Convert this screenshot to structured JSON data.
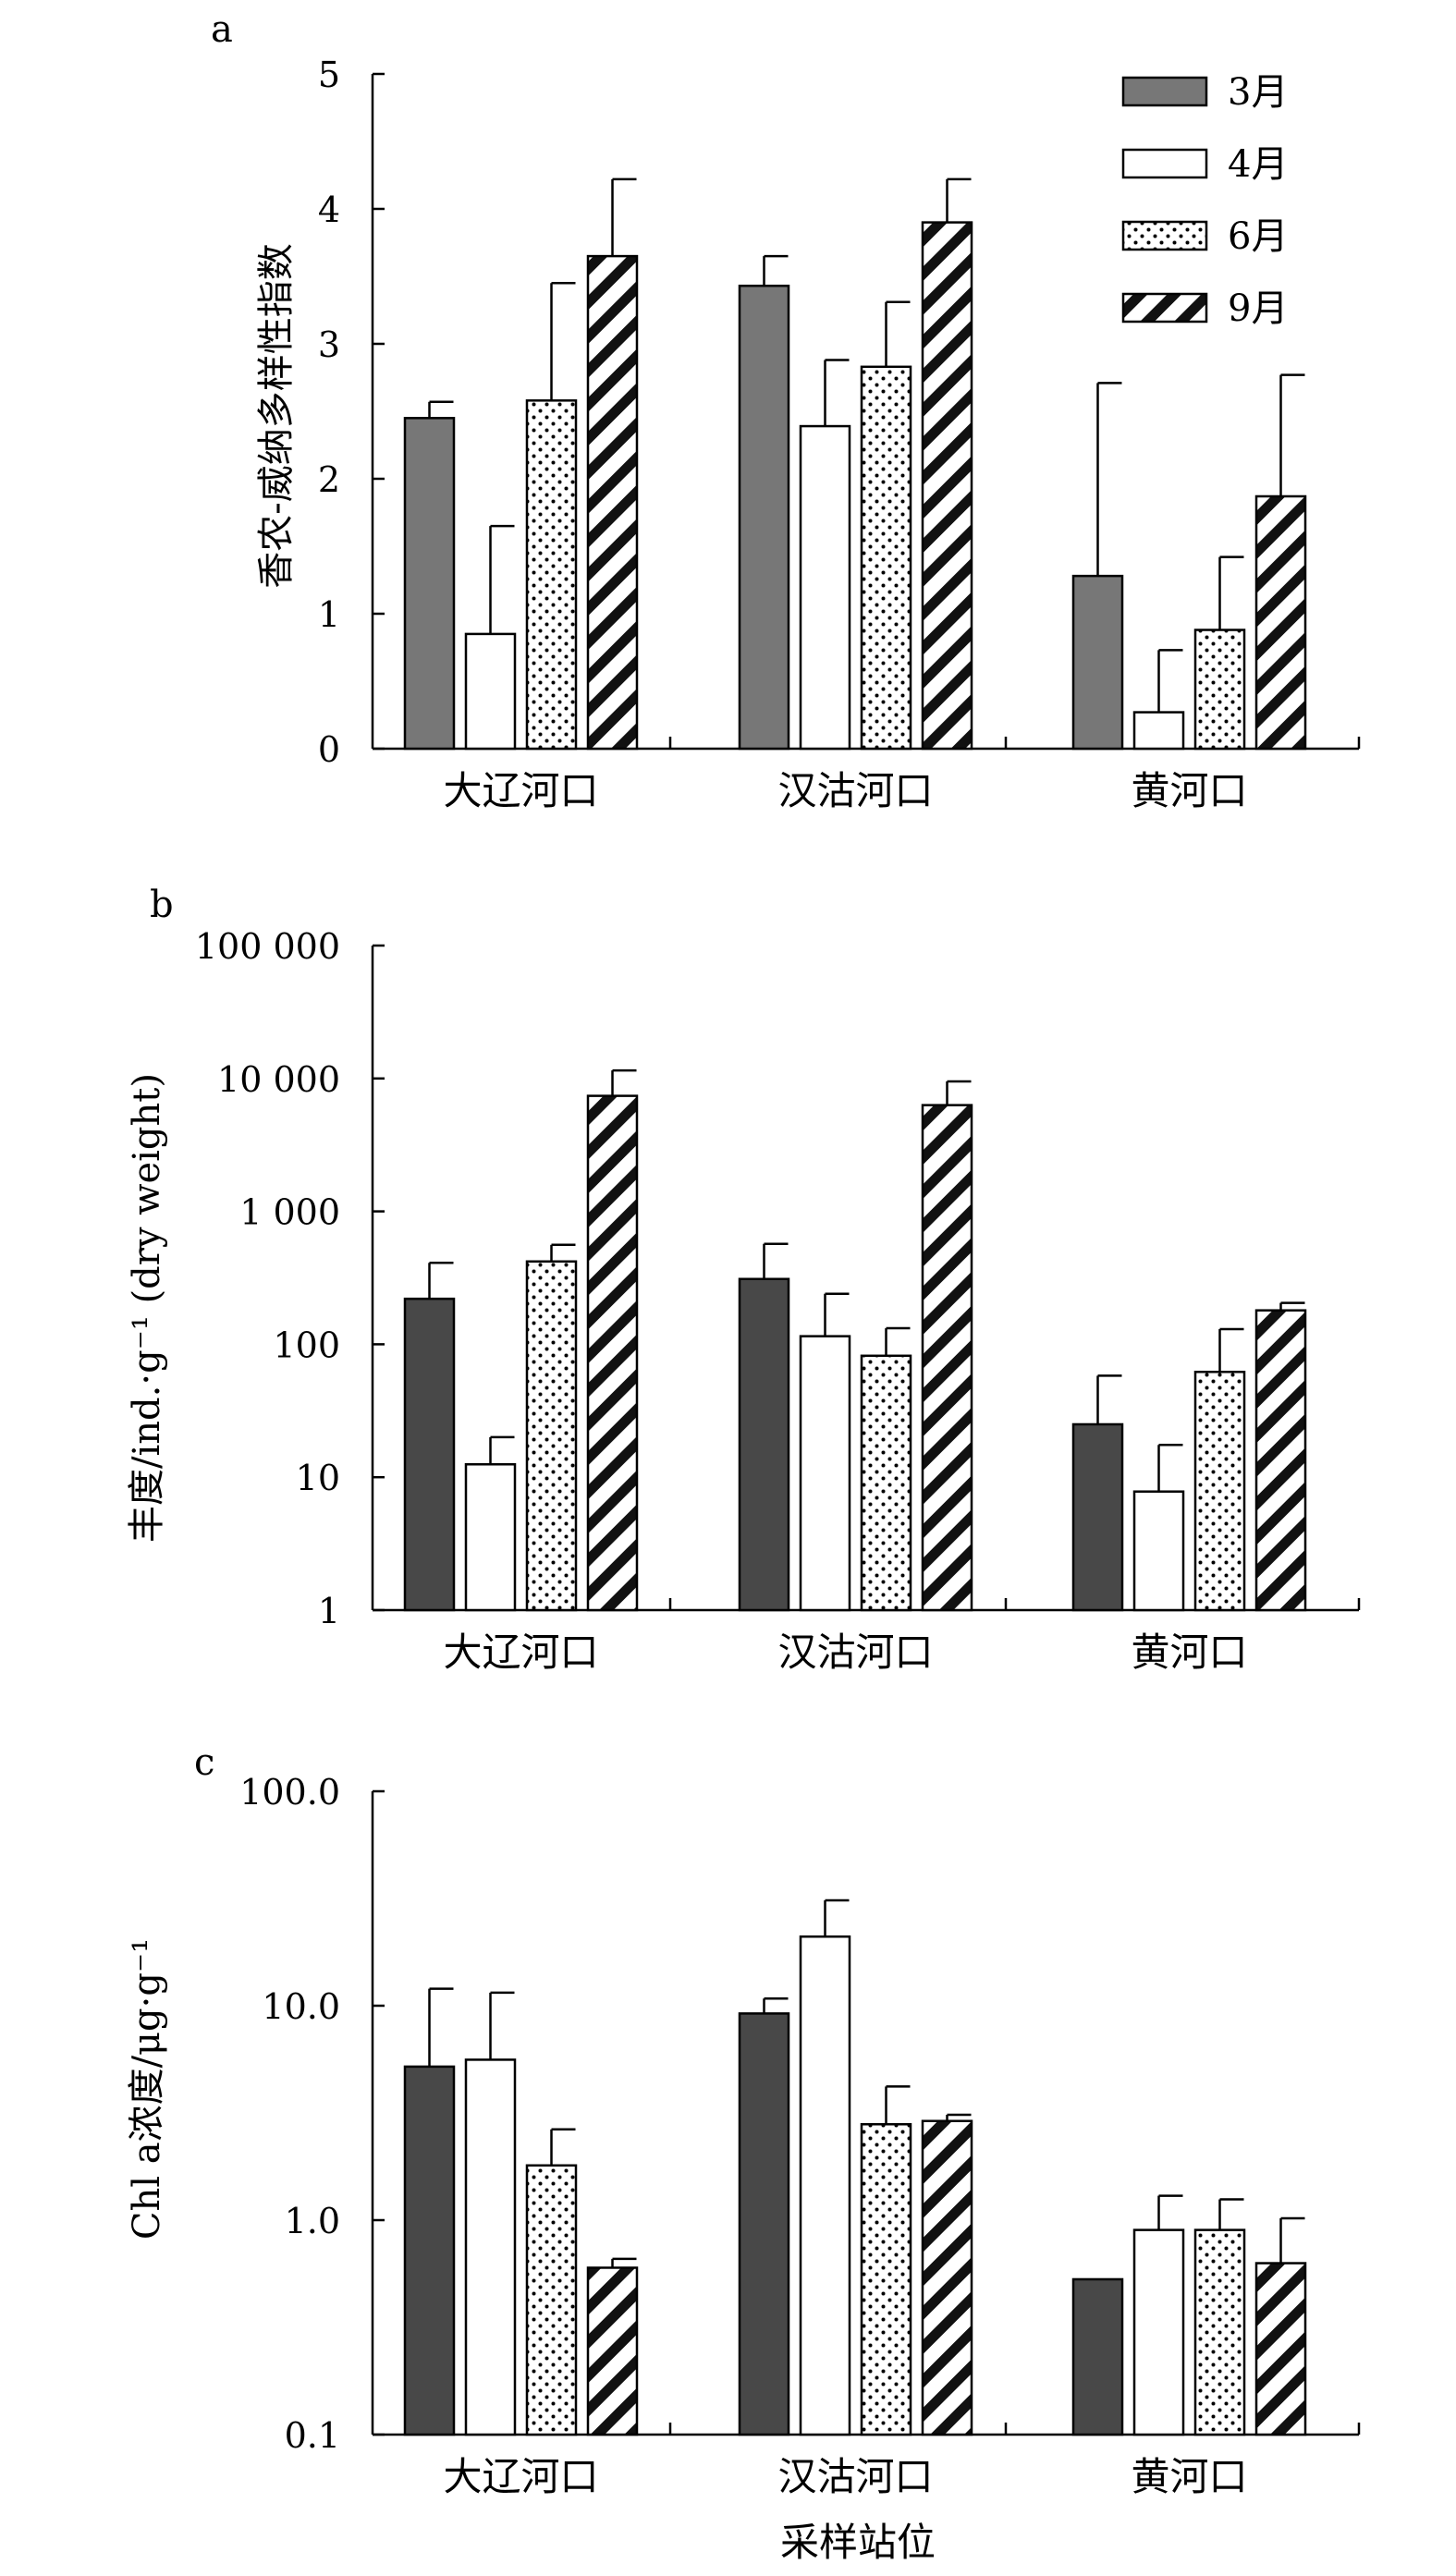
{
  "chart_data": [
    {
      "panel": "a",
      "type": "bar",
      "scale": "linear",
      "ylabel": "香农-威纳多样性指数",
      "yticks": [
        "0",
        "1",
        "2",
        "3",
        "4",
        "5"
      ],
      "ylim": [
        0,
        5
      ],
      "categories": [
        "大辽河口",
        "汉沽河口",
        "黄河口"
      ],
      "legend": {
        "position": "top-right",
        "entries": [
          "3月",
          "4月",
          "6月",
          "9月"
        ]
      },
      "series": [
        {
          "name": "3月",
          "values": [
            2.45,
            3.43,
            1.28
          ],
          "errors": [
            0.12,
            0.22,
            1.43
          ]
        },
        {
          "name": "4月",
          "values": [
            0.85,
            2.39,
            0.27
          ],
          "errors": [
            0.8,
            0.49,
            0.46
          ]
        },
        {
          "name": "6月",
          "values": [
            2.58,
            2.83,
            0.88
          ],
          "errors": [
            0.87,
            0.48,
            0.54
          ]
        },
        {
          "name": "9月",
          "values": [
            3.65,
            3.9,
            1.87
          ],
          "errors": [
            0.57,
            0.32,
            0.9
          ]
        }
      ]
    },
    {
      "panel": "b",
      "type": "bar",
      "scale": "log",
      "ylabel": "丰度/ind.·g⁻¹ (dry weight)",
      "yticks": [
        "1",
        "10",
        "100",
        "1 000",
        "10 000",
        "100 000"
      ],
      "ylim": [
        1,
        100000
      ],
      "categories": [
        "大辽河口",
        "汉沽河口",
        "黄河口"
      ],
      "series": [
        {
          "name": "3月",
          "values": [
            220,
            310,
            25
          ],
          "upper": [
            410,
            570,
            58
          ]
        },
        {
          "name": "4月",
          "values": [
            12.5,
            115,
            7.8
          ],
          "upper": [
            20,
            240,
            17.5
          ]
        },
        {
          "name": "6月",
          "values": [
            420,
            82,
            62
          ],
          "upper": [
            560,
            132,
            130
          ]
        },
        {
          "name": "9月",
          "values": [
            7400,
            6300,
            180
          ],
          "upper": [
            11500,
            9500,
            205
          ]
        }
      ]
    },
    {
      "panel": "c",
      "type": "bar",
      "scale": "log",
      "ylabel": "Chl a浓度/μg·g⁻¹",
      "yticks": [
        "0.1",
        "1.0",
        "10.0",
        "100.0"
      ],
      "ylim": [
        0.1,
        100
      ],
      "xlabel": "采样站位",
      "categories": [
        "大辽河口",
        "汉沽河口",
        "黄河口"
      ],
      "series": [
        {
          "name": "3月",
          "values": [
            5.2,
            9.2,
            0.53
          ],
          "upper": [
            12,
            10.8,
            0.53
          ]
        },
        {
          "name": "4月",
          "values": [
            5.6,
            21,
            0.9
          ],
          "upper": [
            11.5,
            31,
            1.3
          ]
        },
        {
          "name": "6月",
          "values": [
            1.8,
            2.8,
            0.9
          ],
          "upper": [
            2.65,
            4.2,
            1.25
          ]
        },
        {
          "name": "9月",
          "values": [
            0.6,
            2.9,
            0.63
          ],
          "upper": [
            0.66,
            3.1,
            1.02
          ]
        }
      ]
    }
  ],
  "colors": {
    "mar_panel_a": "#777777",
    "mar_panel_bc": "#484848",
    "axis": "#000000",
    "bar_outline": "#000000",
    "fill_white": "#ffffff"
  },
  "fills": [
    "solid",
    "white",
    "dots",
    "diagonal-hatch"
  ]
}
